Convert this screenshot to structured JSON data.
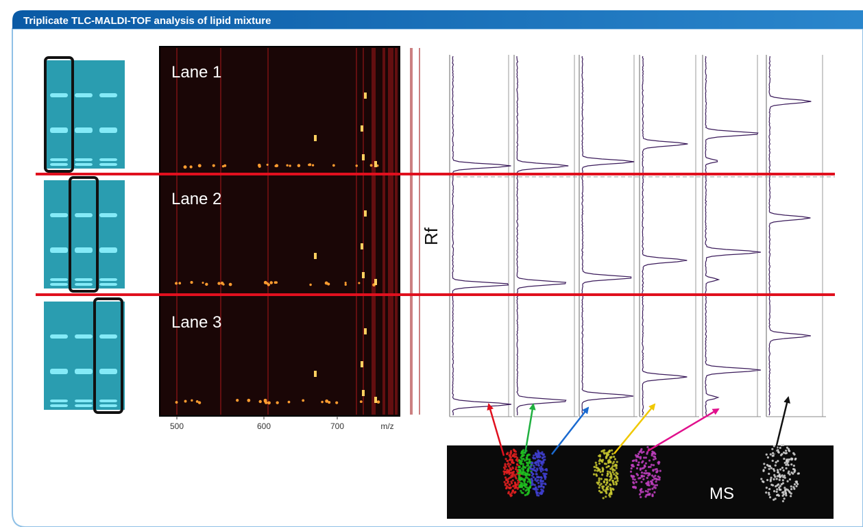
{
  "header": {
    "title": "Triplicate TLC-MALDI-TOF analysis of lipid mixture"
  },
  "heatmap": {
    "lanes": [
      "Lane 1",
      "Lane 2",
      "Lane 3"
    ],
    "xticks": [
      "500",
      "600",
      "700"
    ],
    "xlabel": "m/z"
  },
  "spectra": {
    "ylabel": "Rf"
  },
  "ms_image": {
    "label": "MS"
  }
}
